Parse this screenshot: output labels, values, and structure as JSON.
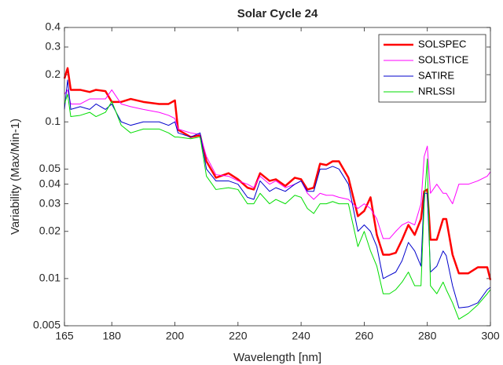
{
  "chart_data": {
    "type": "line",
    "title": "Solar Cycle 24",
    "xlabel": "Wavelength [nm]",
    "ylabel": "Variability (Max/Min-1)",
    "yscale": "log",
    "grid": false,
    "legend": "northeast",
    "xlim": [
      165,
      300
    ],
    "ylim": [
      0.005,
      0.4
    ],
    "xticks": [
      165,
      180,
      200,
      220,
      240,
      260,
      280,
      300
    ],
    "yticks": [
      0.005,
      0.01,
      0.02,
      0.03,
      0.04,
      0.05,
      0.1,
      0.2,
      0.3,
      0.4
    ],
    "x": [
      165,
      166,
      167,
      170,
      173,
      175,
      178,
      180,
      183,
      186,
      190,
      195,
      198,
      200,
      201,
      205,
      208,
      210,
      213,
      217,
      220,
      223,
      225,
      227,
      230,
      232,
      235,
      238,
      240,
      242,
      244,
      246,
      248,
      250,
      252,
      255,
      258,
      260,
      262,
      264,
      266,
      268,
      270,
      272,
      274,
      276,
      278,
      279,
      280,
      281,
      283,
      285,
      286,
      288,
      290,
      293,
      296,
      299,
      300
    ],
    "series": [
      {
        "name": "SOLSPEC",
        "color": "#ff0000",
        "width": 2.5,
        "values": [
          0.189,
          0.22,
          0.16,
          0.16,
          0.155,
          0.16,
          0.157,
          0.134,
          0.134,
          0.14,
          0.134,
          0.13,
          0.13,
          0.137,
          0.089,
          0.08,
          0.082,
          0.056,
          0.044,
          0.047,
          0.043,
          0.038,
          0.037,
          0.047,
          0.042,
          0.043,
          0.039,
          0.044,
          0.043,
          0.037,
          0.038,
          0.054,
          0.053,
          0.056,
          0.056,
          0.044,
          0.025,
          0.027,
          0.033,
          0.019,
          0.0142,
          0.0142,
          0.0146,
          0.0177,
          0.022,
          0.019,
          0.024,
          0.036,
          0.037,
          0.0177,
          0.0177,
          0.024,
          0.024,
          0.0142,
          0.0108,
          0.0108,
          0.0118,
          0.0118,
          0.0098
        ]
      },
      {
        "name": "SOLSTICE",
        "color": "#ff00ff",
        "width": 1,
        "values": [
          0.15,
          0.16,
          0.13,
          0.13,
          0.14,
          0.14,
          0.14,
          0.16,
          0.13,
          0.125,
          0.12,
          0.115,
          0.11,
          0.105,
          0.09,
          0.085,
          0.083,
          0.06,
          0.046,
          0.045,
          0.042,
          0.04,
          0.038,
          0.045,
          0.04,
          0.042,
          0.038,
          0.04,
          0.042,
          0.035,
          0.032,
          0.035,
          0.034,
          0.034,
          0.033,
          0.032,
          0.028,
          0.03,
          0.028,
          0.024,
          0.018,
          0.018,
          0.02,
          0.022,
          0.023,
          0.022,
          0.03,
          0.06,
          0.07,
          0.035,
          0.04,
          0.035,
          0.035,
          0.03,
          0.04,
          0.04,
          0.042,
          0.045,
          0.048
        ]
      },
      {
        "name": "SATIRE",
        "color": "#0000cc",
        "width": 1,
        "values": [
          0.12,
          0.185,
          0.12,
          0.125,
          0.12,
          0.13,
          0.12,
          0.13,
          0.1,
          0.095,
          0.1,
          0.1,
          0.095,
          0.1,
          0.085,
          0.08,
          0.085,
          0.05,
          0.042,
          0.042,
          0.04,
          0.033,
          0.032,
          0.042,
          0.036,
          0.038,
          0.036,
          0.04,
          0.042,
          0.036,
          0.036,
          0.05,
          0.05,
          0.052,
          0.05,
          0.04,
          0.02,
          0.022,
          0.02,
          0.016,
          0.01,
          0.0105,
          0.011,
          0.013,
          0.017,
          0.015,
          0.012,
          0.035,
          0.035,
          0.011,
          0.012,
          0.015,
          0.014,
          0.009,
          0.0065,
          0.0066,
          0.007,
          0.0085,
          0.0088
        ]
      },
      {
        "name": "NRLSSI",
        "color": "#00dd00",
        "width": 1,
        "values": [
          0.13,
          0.15,
          0.108,
          0.11,
          0.115,
          0.108,
          0.115,
          0.135,
          0.095,
          0.085,
          0.09,
          0.09,
          0.085,
          0.08,
          0.08,
          0.078,
          0.08,
          0.045,
          0.037,
          0.038,
          0.037,
          0.03,
          0.03,
          0.035,
          0.03,
          0.032,
          0.03,
          0.034,
          0.033,
          0.028,
          0.026,
          0.03,
          0.03,
          0.031,
          0.03,
          0.03,
          0.016,
          0.02,
          0.015,
          0.012,
          0.008,
          0.008,
          0.0085,
          0.0095,
          0.011,
          0.009,
          0.009,
          0.03,
          0.058,
          0.009,
          0.008,
          0.0095,
          0.0085,
          0.007,
          0.0055,
          0.006,
          0.0068,
          0.008,
          0.0085
        ]
      }
    ]
  }
}
